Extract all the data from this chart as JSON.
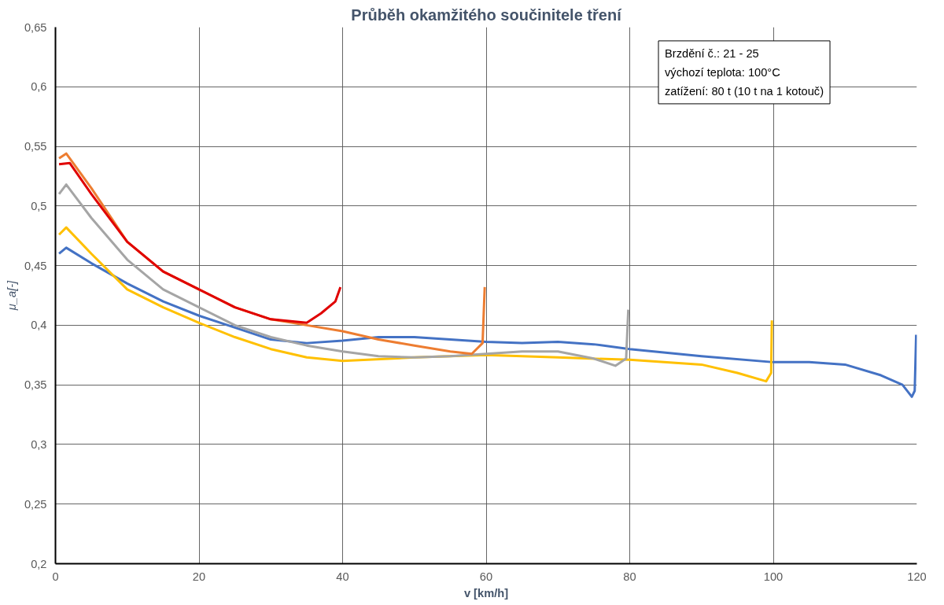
{
  "chart_data": {
    "type": "line",
    "title": "Průběh okamžitého součinitele tření",
    "xlabel": "v [km/h]",
    "ylabel": "μ_a[-]",
    "xlim": [
      0,
      120
    ],
    "xticks": [
      0,
      20,
      40,
      60,
      80,
      100,
      120
    ],
    "ylim": [
      0.2,
      0.65
    ],
    "yticks": [
      {
        "value": 0.2,
        "label": "0,2"
      },
      {
        "value": 0.25,
        "label": "0,25"
      },
      {
        "value": 0.3,
        "label": "0,3"
      },
      {
        "value": 0.35,
        "label": "0,35"
      },
      {
        "value": 0.4,
        "label": "0,4"
      },
      {
        "value": 0.45,
        "label": "0,45"
      },
      {
        "value": 0.5,
        "label": "0,5"
      },
      {
        "value": 0.55,
        "label": "0,55"
      },
      {
        "value": 0.6,
        "label": "0,6"
      },
      {
        "value": 0.65,
        "label": "0,65"
      }
    ],
    "grid": true,
    "line_style": "solid",
    "annotations": [
      "Brzdění č.: 21 - 25",
      "výchozí teplota: 100°C",
      "zatížení: 80 t (10 t na 1 kotouč)"
    ],
    "series": [
      {
        "color": "#4472c4",
        "x": [
          0.5,
          1.5,
          5,
          10,
          15,
          20,
          25,
          30,
          35,
          40,
          45,
          50,
          55,
          60,
          65,
          70,
          75,
          80,
          90,
          100,
          105,
          110,
          115,
          118,
          119.3,
          119.7,
          119.9
        ],
        "values": [
          0.46,
          0.465,
          0.452,
          0.435,
          0.42,
          0.408,
          0.398,
          0.388,
          0.385,
          0.387,
          0.39,
          0.39,
          0.388,
          0.386,
          0.385,
          0.386,
          0.384,
          0.38,
          0.374,
          0.369,
          0.369,
          0.367,
          0.358,
          0.35,
          0.34,
          0.345,
          0.392
        ]
      },
      {
        "color": "#ffc000",
        "x": [
          0.5,
          1.5,
          5,
          10,
          15,
          20,
          25,
          30,
          35,
          40,
          50,
          60,
          70,
          80,
          90,
          95,
          99,
          99.7,
          99.8
        ],
        "values": [
          0.476,
          0.482,
          0.46,
          0.43,
          0.415,
          0.402,
          0.39,
          0.38,
          0.373,
          0.37,
          0.373,
          0.375,
          0.373,
          0.371,
          0.367,
          0.36,
          0.353,
          0.36,
          0.404
        ]
      },
      {
        "color": "#a5a5a5",
        "x": [
          0.5,
          1.5,
          5,
          10,
          15,
          20,
          25,
          30,
          35,
          40,
          45,
          50,
          55,
          60,
          65,
          70,
          75,
          78,
          79.5,
          79.8
        ],
        "values": [
          0.51,
          0.518,
          0.49,
          0.455,
          0.43,
          0.415,
          0.4,
          0.39,
          0.383,
          0.378,
          0.374,
          0.373,
          0.374,
          0.376,
          0.378,
          0.378,
          0.372,
          0.366,
          0.372,
          0.413
        ]
      },
      {
        "color": "#ed7d31",
        "x": [
          0.5,
          1.5,
          5,
          10,
          15,
          20,
          25,
          30,
          35,
          40,
          45,
          50,
          55,
          58,
          59.5,
          59.8
        ],
        "values": [
          0.54,
          0.544,
          0.515,
          0.47,
          0.445,
          0.43,
          0.415,
          0.405,
          0.4,
          0.395,
          0.388,
          0.383,
          0.378,
          0.376,
          0.385,
          0.432
        ]
      },
      {
        "color": "#e00000",
        "x": [
          0.5,
          2,
          5,
          10,
          15,
          20,
          25,
          30,
          35,
          37,
          39,
          39.7
        ],
        "values": [
          0.535,
          0.536,
          0.51,
          0.47,
          0.445,
          0.43,
          0.415,
          0.405,
          0.402,
          0.41,
          0.42,
          0.432
        ]
      }
    ]
  }
}
